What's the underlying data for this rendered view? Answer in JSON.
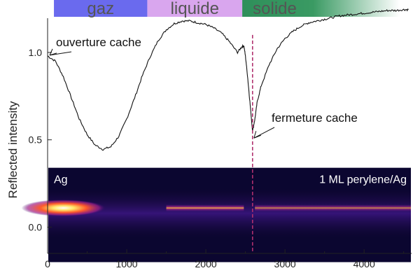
{
  "chart_data": {
    "type": "line",
    "title": "",
    "xlabel": "",
    "ylabel": "Reflected intensity",
    "xlim": [
      0,
      4600
    ],
    "ylim": [
      -0.15,
      1.3
    ],
    "x_ticks": [
      0,
      1000,
      2000,
      3000,
      4000
    ],
    "y_ticks": [
      0.0,
      0.5,
      1.0
    ],
    "grid": false,
    "phases": [
      {
        "label": "gaz",
        "x_start": 80,
        "x_end": 1260,
        "color": "#6a6aee"
      },
      {
        "label": "liquide",
        "x_start": 1260,
        "x_end": 2460,
        "color": "#d9a6ee"
      },
      {
        "label": "solide",
        "x_start": 2460,
        "x_end": 4450,
        "color": "#2f8f5a"
      }
    ],
    "series": [
      {
        "points": [
          [
            0,
            0.98
          ],
          [
            100,
            0.95
          ],
          [
            200,
            0.86
          ],
          [
            300,
            0.74
          ],
          [
            400,
            0.62
          ],
          [
            500,
            0.53
          ],
          [
            600,
            0.47
          ],
          [
            700,
            0.445
          ],
          [
            800,
            0.46
          ],
          [
            900,
            0.52
          ],
          [
            1000,
            0.62
          ],
          [
            1100,
            0.74
          ],
          [
            1200,
            0.87
          ],
          [
            1300,
            0.98
          ],
          [
            1400,
            1.07
          ],
          [
            1500,
            1.13
          ],
          [
            1600,
            1.165
          ],
          [
            1700,
            1.18
          ],
          [
            1800,
            1.18
          ],
          [
            1900,
            1.17
          ],
          [
            2000,
            1.16
          ],
          [
            2100,
            1.14
          ],
          [
            2200,
            1.11
          ],
          [
            2300,
            1.06
          ],
          [
            2400,
            1.0
          ],
          [
            2450,
            1.03
          ],
          [
            2480,
            1.04
          ],
          [
            2500,
            0.98
          ],
          [
            2530,
            0.85
          ],
          [
            2560,
            0.7
          ],
          [
            2590,
            0.55
          ],
          [
            2620,
            0.62
          ],
          [
            2650,
            0.72
          ],
          [
            2700,
            0.81
          ],
          [
            2800,
            0.93
          ],
          [
            2900,
            1.02
          ],
          [
            3000,
            1.08
          ],
          [
            3100,
            1.12
          ],
          [
            3200,
            1.15
          ],
          [
            3300,
            1.17
          ],
          [
            3400,
            1.18
          ],
          [
            3500,
            1.19
          ],
          [
            3600,
            1.2
          ],
          [
            3700,
            1.21
          ],
          [
            3800,
            1.215
          ],
          [
            3900,
            1.22
          ],
          [
            4000,
            1.225
          ],
          [
            4100,
            1.23
          ],
          [
            4200,
            1.235
          ],
          [
            4300,
            1.24
          ],
          [
            4400,
            1.24
          ],
          [
            4500,
            1.245
          ],
          [
            4560,
            1.245
          ]
        ]
      }
    ],
    "markers": [
      {
        "type": "vline",
        "x": 2590,
        "color": "#b0306e",
        "style": "dashed"
      }
    ],
    "annotations": [
      {
        "text": "ouverture cache",
        "target": [
          0,
          0.98
        ]
      },
      {
        "text": "fermeture cache",
        "target": [
          2590,
          0.55
        ]
      }
    ],
    "inset_heatmap": {
      "x_range": [
        0,
        4600
      ],
      "y_range": [
        -0.2,
        0.34
      ],
      "label_left": "Ag",
      "label_right": "1 ML perylene/Ag",
      "colormap": "black-purple-magenta-yellow-white"
    }
  }
}
